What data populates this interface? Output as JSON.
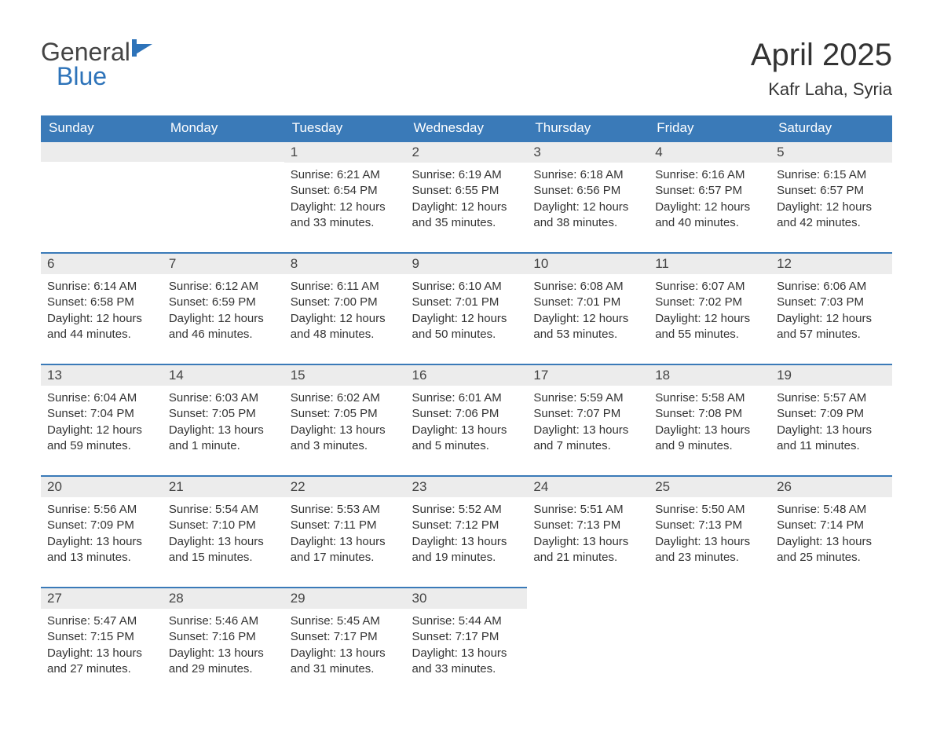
{
  "brand": {
    "general": "General",
    "blue": "Blue",
    "logo_color": "#2d73b9",
    "text_color": "#444444"
  },
  "title": "April 2025",
  "location": "Kafr Laha, Syria",
  "colors": {
    "header_bg": "#3a7ab8",
    "header_text": "#ffffff",
    "daynum_bg": "#ececec",
    "daynum_border": "#3a7ab8",
    "body_text": "#333333",
    "page_bg": "#ffffff"
  },
  "fonts": {
    "title_size": 40,
    "location_size": 22,
    "header_size": 17,
    "daynum_size": 17,
    "body_size": 15
  },
  "weekdays": [
    "Sunday",
    "Monday",
    "Tuesday",
    "Wednesday",
    "Thursday",
    "Friday",
    "Saturday"
  ],
  "weeks": [
    [
      {
        "day": "",
        "sunrise": "",
        "sunset": "",
        "daylight": ""
      },
      {
        "day": "",
        "sunrise": "",
        "sunset": "",
        "daylight": ""
      },
      {
        "day": "1",
        "sunrise": "Sunrise: 6:21 AM",
        "sunset": "Sunset: 6:54 PM",
        "daylight": "Daylight: 12 hours and 33 minutes."
      },
      {
        "day": "2",
        "sunrise": "Sunrise: 6:19 AM",
        "sunset": "Sunset: 6:55 PM",
        "daylight": "Daylight: 12 hours and 35 minutes."
      },
      {
        "day": "3",
        "sunrise": "Sunrise: 6:18 AM",
        "sunset": "Sunset: 6:56 PM",
        "daylight": "Daylight: 12 hours and 38 minutes."
      },
      {
        "day": "4",
        "sunrise": "Sunrise: 6:16 AM",
        "sunset": "Sunset: 6:57 PM",
        "daylight": "Daylight: 12 hours and 40 minutes."
      },
      {
        "day": "5",
        "sunrise": "Sunrise: 6:15 AM",
        "sunset": "Sunset: 6:57 PM",
        "daylight": "Daylight: 12 hours and 42 minutes."
      }
    ],
    [
      {
        "day": "6",
        "sunrise": "Sunrise: 6:14 AM",
        "sunset": "Sunset: 6:58 PM",
        "daylight": "Daylight: 12 hours and 44 minutes."
      },
      {
        "day": "7",
        "sunrise": "Sunrise: 6:12 AM",
        "sunset": "Sunset: 6:59 PM",
        "daylight": "Daylight: 12 hours and 46 minutes."
      },
      {
        "day": "8",
        "sunrise": "Sunrise: 6:11 AM",
        "sunset": "Sunset: 7:00 PM",
        "daylight": "Daylight: 12 hours and 48 minutes."
      },
      {
        "day": "9",
        "sunrise": "Sunrise: 6:10 AM",
        "sunset": "Sunset: 7:01 PM",
        "daylight": "Daylight: 12 hours and 50 minutes."
      },
      {
        "day": "10",
        "sunrise": "Sunrise: 6:08 AM",
        "sunset": "Sunset: 7:01 PM",
        "daylight": "Daylight: 12 hours and 53 minutes."
      },
      {
        "day": "11",
        "sunrise": "Sunrise: 6:07 AM",
        "sunset": "Sunset: 7:02 PM",
        "daylight": "Daylight: 12 hours and 55 minutes."
      },
      {
        "day": "12",
        "sunrise": "Sunrise: 6:06 AM",
        "sunset": "Sunset: 7:03 PM",
        "daylight": "Daylight: 12 hours and 57 minutes."
      }
    ],
    [
      {
        "day": "13",
        "sunrise": "Sunrise: 6:04 AM",
        "sunset": "Sunset: 7:04 PM",
        "daylight": "Daylight: 12 hours and 59 minutes."
      },
      {
        "day": "14",
        "sunrise": "Sunrise: 6:03 AM",
        "sunset": "Sunset: 7:05 PM",
        "daylight": "Daylight: 13 hours and 1 minute."
      },
      {
        "day": "15",
        "sunrise": "Sunrise: 6:02 AM",
        "sunset": "Sunset: 7:05 PM",
        "daylight": "Daylight: 13 hours and 3 minutes."
      },
      {
        "day": "16",
        "sunrise": "Sunrise: 6:01 AM",
        "sunset": "Sunset: 7:06 PM",
        "daylight": "Daylight: 13 hours and 5 minutes."
      },
      {
        "day": "17",
        "sunrise": "Sunrise: 5:59 AM",
        "sunset": "Sunset: 7:07 PM",
        "daylight": "Daylight: 13 hours and 7 minutes."
      },
      {
        "day": "18",
        "sunrise": "Sunrise: 5:58 AM",
        "sunset": "Sunset: 7:08 PM",
        "daylight": "Daylight: 13 hours and 9 minutes."
      },
      {
        "day": "19",
        "sunrise": "Sunrise: 5:57 AM",
        "sunset": "Sunset: 7:09 PM",
        "daylight": "Daylight: 13 hours and 11 minutes."
      }
    ],
    [
      {
        "day": "20",
        "sunrise": "Sunrise: 5:56 AM",
        "sunset": "Sunset: 7:09 PM",
        "daylight": "Daylight: 13 hours and 13 minutes."
      },
      {
        "day": "21",
        "sunrise": "Sunrise: 5:54 AM",
        "sunset": "Sunset: 7:10 PM",
        "daylight": "Daylight: 13 hours and 15 minutes."
      },
      {
        "day": "22",
        "sunrise": "Sunrise: 5:53 AM",
        "sunset": "Sunset: 7:11 PM",
        "daylight": "Daylight: 13 hours and 17 minutes."
      },
      {
        "day": "23",
        "sunrise": "Sunrise: 5:52 AM",
        "sunset": "Sunset: 7:12 PM",
        "daylight": "Daylight: 13 hours and 19 minutes."
      },
      {
        "day": "24",
        "sunrise": "Sunrise: 5:51 AM",
        "sunset": "Sunset: 7:13 PM",
        "daylight": "Daylight: 13 hours and 21 minutes."
      },
      {
        "day": "25",
        "sunrise": "Sunrise: 5:50 AM",
        "sunset": "Sunset: 7:13 PM",
        "daylight": "Daylight: 13 hours and 23 minutes."
      },
      {
        "day": "26",
        "sunrise": "Sunrise: 5:48 AM",
        "sunset": "Sunset: 7:14 PM",
        "daylight": "Daylight: 13 hours and 25 minutes."
      }
    ],
    [
      {
        "day": "27",
        "sunrise": "Sunrise: 5:47 AM",
        "sunset": "Sunset: 7:15 PM",
        "daylight": "Daylight: 13 hours and 27 minutes."
      },
      {
        "day": "28",
        "sunrise": "Sunrise: 5:46 AM",
        "sunset": "Sunset: 7:16 PM",
        "daylight": "Daylight: 13 hours and 29 minutes."
      },
      {
        "day": "29",
        "sunrise": "Sunrise: 5:45 AM",
        "sunset": "Sunset: 7:17 PM",
        "daylight": "Daylight: 13 hours and 31 minutes."
      },
      {
        "day": "30",
        "sunrise": "Sunrise: 5:44 AM",
        "sunset": "Sunset: 7:17 PM",
        "daylight": "Daylight: 13 hours and 33 minutes."
      },
      {
        "day": "",
        "sunrise": "",
        "sunset": "",
        "daylight": ""
      },
      {
        "day": "",
        "sunrise": "",
        "sunset": "",
        "daylight": ""
      },
      {
        "day": "",
        "sunrise": "",
        "sunset": "",
        "daylight": ""
      }
    ]
  ]
}
